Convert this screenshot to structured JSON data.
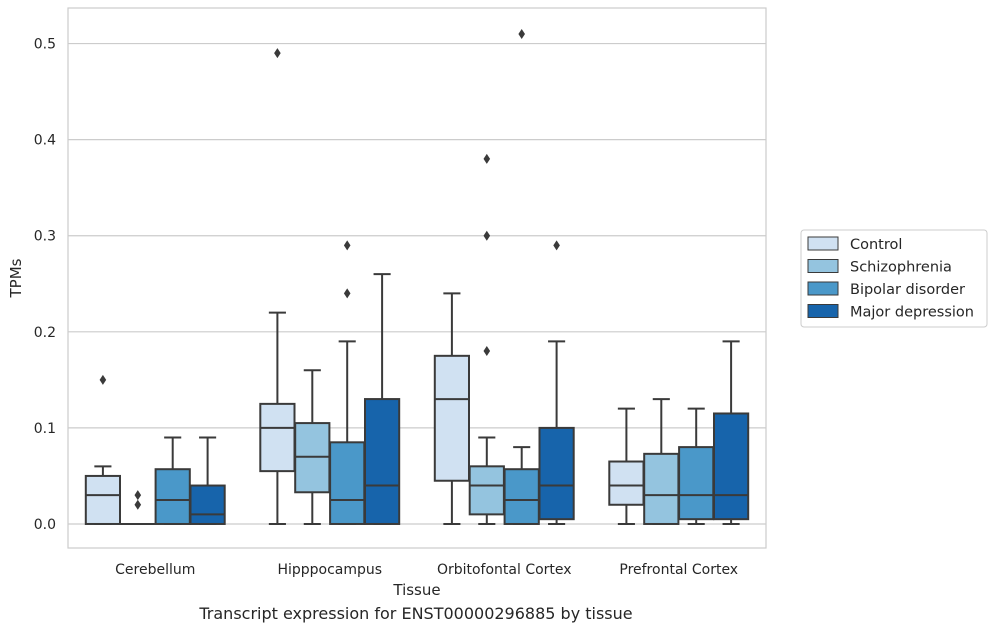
{
  "caption": "Transcript expression for ENST00000296885 by tissue",
  "chart_data": {
    "type": "box",
    "xlabel": "Tissue",
    "ylabel": "TPMs",
    "ylim": [
      -0.025,
      0.537
    ],
    "yticks": [
      0.0,
      0.1,
      0.2,
      0.3,
      0.4,
      0.5
    ],
    "grid": "horizontal",
    "legend_position": "right",
    "categories": [
      "Cerebellum",
      "Hipppocampus",
      "Orbitofontal Cortex",
      "Prefrontal Cortex"
    ],
    "series": [
      {
        "name": "Control",
        "color": "#d0e1f2",
        "boxes": [
          {
            "whislo": 0.0,
            "q1": 0.0,
            "med": 0.03,
            "q3": 0.05,
            "whishi": 0.06,
            "fliers": [
              0.15
            ]
          },
          {
            "whislo": 0.0,
            "q1": 0.055,
            "med": 0.1,
            "q3": 0.125,
            "whishi": 0.22,
            "fliers": [
              0.49
            ]
          },
          {
            "whislo": 0.0,
            "q1": 0.045,
            "med": 0.13,
            "q3": 0.175,
            "whishi": 0.24,
            "fliers": []
          },
          {
            "whislo": 0.0,
            "q1": 0.02,
            "med": 0.04,
            "q3": 0.065,
            "whishi": 0.12,
            "fliers": []
          }
        ]
      },
      {
        "name": "Schizophrenia",
        "color": "#94c4df",
        "boxes": [
          {
            "whislo": 0.0,
            "q1": 0.0,
            "med": 0.0,
            "q3": 0.0,
            "whishi": 0.0,
            "fliers": [
              0.02,
              0.03
            ]
          },
          {
            "whislo": 0.0,
            "q1": 0.033,
            "med": 0.07,
            "q3": 0.105,
            "whishi": 0.16,
            "fliers": []
          },
          {
            "whislo": 0.0,
            "q1": 0.01,
            "med": 0.04,
            "q3": 0.06,
            "whishi": 0.09,
            "fliers": [
              0.18,
              0.3,
              0.38
            ]
          },
          {
            "whislo": 0.0,
            "q1": 0.0,
            "med": 0.03,
            "q3": 0.073,
            "whishi": 0.13,
            "fliers": []
          }
        ]
      },
      {
        "name": "Bipolar disorder",
        "color": "#4a98c9",
        "boxes": [
          {
            "whislo": 0.0,
            "q1": 0.0,
            "med": 0.025,
            "q3": 0.057,
            "whishi": 0.09,
            "fliers": []
          },
          {
            "whislo": 0.0,
            "q1": 0.0,
            "med": 0.025,
            "q3": 0.085,
            "whishi": 0.19,
            "fliers": [
              0.24,
              0.29
            ]
          },
          {
            "whislo": 0.0,
            "q1": 0.0,
            "med": 0.025,
            "q3": 0.057,
            "whishi": 0.08,
            "fliers": [
              0.51
            ]
          },
          {
            "whislo": 0.0,
            "q1": 0.005,
            "med": 0.03,
            "q3": 0.08,
            "whishi": 0.12,
            "fliers": []
          }
        ]
      },
      {
        "name": "Major depression",
        "color": "#1764ab",
        "boxes": [
          {
            "whislo": 0.0,
            "q1": 0.0,
            "med": 0.01,
            "q3": 0.04,
            "whishi": 0.09,
            "fliers": []
          },
          {
            "whislo": 0.0,
            "q1": 0.0,
            "med": 0.04,
            "q3": 0.13,
            "whishi": 0.26,
            "fliers": []
          },
          {
            "whislo": 0.0,
            "q1": 0.005,
            "med": 0.04,
            "q3": 0.1,
            "whishi": 0.19,
            "fliers": [
              0.29
            ]
          },
          {
            "whislo": 0.0,
            "q1": 0.005,
            "med": 0.03,
            "q3": 0.115,
            "whishi": 0.19,
            "fliers": []
          }
        ]
      }
    ]
  }
}
